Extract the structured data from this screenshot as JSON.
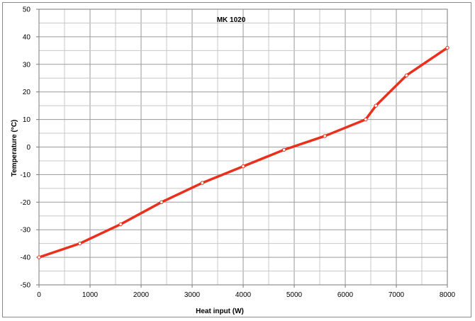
{
  "chart_data": {
    "type": "line",
    "title": "MK 1020",
    "xlabel": "Heat input (W)",
    "ylabel": "Temperature (°C)",
    "xlim": [
      0,
      8000
    ],
    "ylim": [
      -50,
      50
    ],
    "x_ticks": [
      0,
      1000,
      2000,
      3000,
      4000,
      5000,
      6000,
      7000,
      8000
    ],
    "y_ticks": [
      50,
      40,
      30,
      20,
      10,
      0,
      -10,
      -20,
      -30,
      -40,
      -50
    ],
    "x_minor_step": 500,
    "y_minor_step": 5,
    "grid": true,
    "legend": "none",
    "series": [
      {
        "color": "#e8301c",
        "marker_color": "#ffffff",
        "points": [
          [
            0,
            -40
          ],
          [
            800,
            -35
          ],
          [
            1600,
            -28
          ],
          [
            2400,
            -20
          ],
          [
            3200,
            -13
          ],
          [
            4000,
            -7
          ],
          [
            4800,
            -1
          ],
          [
            5600,
            4
          ],
          [
            6400,
            10
          ],
          [
            6600,
            15
          ],
          [
            7200,
            26
          ],
          [
            8000,
            36
          ]
        ]
      }
    ]
  }
}
